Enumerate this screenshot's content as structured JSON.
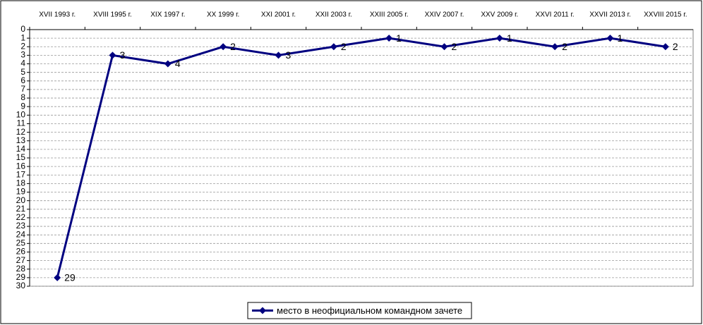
{
  "chart_data": {
    "type": "line",
    "categories": [
      "XVII 1993 г.",
      "XVIII 1995 г.",
      "XIX 1997 г.",
      "XX 1999 г.",
      "XXI 2001 г.",
      "XXII 2003 г.",
      "XXIII 2005 г.",
      "XXIV 2007 г.",
      "XXV 2009 г.",
      "XXVI 2011 г.",
      "XXVII 2013 г.",
      "XXVIII 2015 г."
    ],
    "series": [
      {
        "name": "место в неофициальном командном зачете",
        "color": "#000080",
        "values": [
          29,
          3,
          4,
          2,
          3,
          2,
          1,
          2,
          1,
          2,
          1,
          2
        ]
      }
    ],
    "ylim": [
      0,
      30
    ],
    "y_reversed": true,
    "yticks": [
      0,
      1,
      2,
      3,
      4,
      5,
      6,
      7,
      8,
      9,
      10,
      11,
      12,
      13,
      14,
      15,
      16,
      17,
      18,
      19,
      20,
      21,
      22,
      23,
      24,
      25,
      26,
      27,
      28,
      29,
      30
    ],
    "grid": true,
    "legend": "bottom"
  }
}
